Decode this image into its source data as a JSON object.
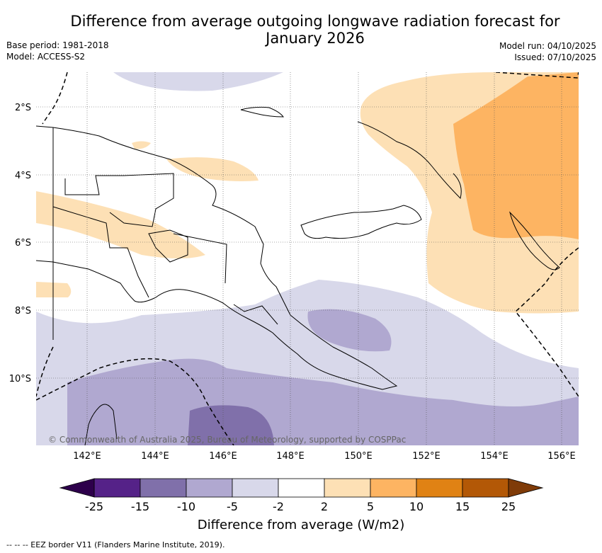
{
  "header": {
    "title_line1": "Difference from average outgoing longwave radiation forecast for",
    "title_line2": "January 2026",
    "base_period": "Base period: 1981-2018",
    "model": "Model: ACCESS-S2",
    "model_run": "Model run: 04/10/2025",
    "issued": "Issued: 07/10/2025"
  },
  "map": {
    "copyright": "© Commonwealth of Australia 2025, Bureau of Meteorology, supported by COSPPac",
    "lat_labels": [
      "2°S",
      "4°S",
      "6°S",
      "8°S",
      "10°S"
    ],
    "lon_labels": [
      "142°E",
      "144°E",
      "146°E",
      "148°E",
      "150°E",
      "152°E",
      "154°E",
      "156°E"
    ]
  },
  "colorbar": {
    "title": "Difference from average (W/m2)",
    "ticks": [
      "-25",
      "-15",
      "-10",
      "-5",
      "-2",
      "2",
      "5",
      "10",
      "15",
      "25"
    ],
    "colors": [
      "#552288",
      "#8070aa",
      "#b0a8d0",
      "#d8d8ea",
      "#ffffff",
      "#fde0b5",
      "#fdb462",
      "#e08214",
      "#b35806"
    ],
    "under_color": "#2d004b",
    "over_color": "#7f3b08"
  },
  "footnote": "-- -- -- EEZ border V11 (Flanders Marine Institute, 2019)."
}
